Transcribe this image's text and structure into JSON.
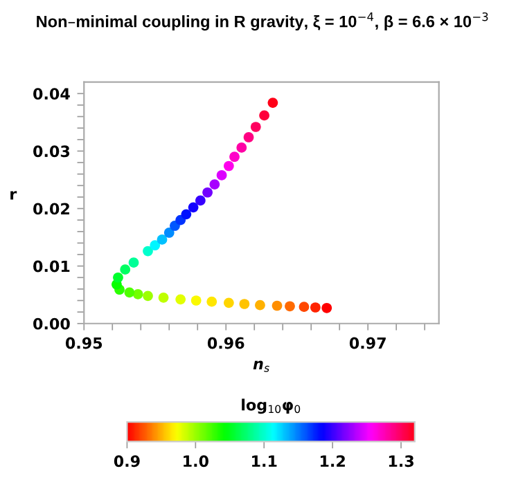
{
  "chart_data": {
    "type": "scatter",
    "title": "Non–minimal coupling in R gravity, ξ = 10$^{−4}$, β = 6.6 × 10$^{−3}$",
    "xlabel": "n$_{s}$",
    "ylabel": "r",
    "clabel": "log$_{10}$φ$_{0}$",
    "x": [
      0.9671,
      0.9663,
      0.9655,
      0.9645,
      0.9636,
      0.9624,
      0.9613,
      0.9602,
      0.959,
      0.9579,
      0.9568,
      0.9556,
      0.9545,
      0.9538,
      0.9532,
      0.9525,
      0.9523,
      0.9524,
      0.9529,
      0.9535,
      0.9545,
      0.955,
      0.9555,
      0.956,
      0.9564,
      0.9568,
      0.9572,
      0.9577,
      0.9582,
      0.9587,
      0.9592,
      0.9597,
      0.9602,
      0.9606,
      0.9611,
      0.9616,
      0.9621,
      0.9627,
      0.9633
    ],
    "values": [
      0.0027,
      0.0028,
      0.0029,
      0.003,
      0.0031,
      0.0032,
      0.0034,
      0.0036,
      0.0038,
      0.004,
      0.0042,
      0.0045,
      0.0048,
      0.0051,
      0.0054,
      0.0059,
      0.0068,
      0.008,
      0.0094,
      0.0106,
      0.0126,
      0.0136,
      0.0146,
      0.0158,
      0.017,
      0.018,
      0.019,
      0.0202,
      0.0214,
      0.0228,
      0.0242,
      0.0258,
      0.0274,
      0.029,
      0.0306,
      0.0324,
      0.0342,
      0.0362,
      0.0384
    ],
    "cvalues": [
      0.9,
      0.91,
      0.92,
      0.93,
      0.94,
      0.95,
      0.955,
      0.96,
      0.965,
      0.972,
      0.98,
      0.99,
      1.0,
      1.01,
      1.02,
      1.03,
      1.04,
      1.055,
      1.07,
      1.085,
      1.1,
      1.115,
      1.13,
      1.145,
      1.16,
      1.17,
      1.18,
      1.19,
      1.2,
      1.215,
      1.23,
      1.245,
      1.26,
      1.27,
      1.28,
      1.29,
      1.3,
      1.31,
      1.32
    ],
    "marker": "circle",
    "grid": false,
    "xlim": [
      0.95,
      0.975
    ],
    "xticks": [
      0.95,
      {
        "value": 0.952,
        "label": null
      },
      {
        "value": 0.954,
        "label": null
      },
      {
        "value": 0.956,
        "label": null
      },
      {
        "value": 0.958,
        "label": null
      },
      0.96,
      {
        "value": 0.962,
        "label": null
      },
      {
        "value": 0.964,
        "label": null
      },
      {
        "value": 0.966,
        "label": null
      },
      {
        "value": 0.968,
        "label": null
      },
      0.97,
      {
        "value": 0.972,
        "label": null
      },
      {
        "value": 0.974,
        "label": null
      }
    ],
    "ylim": [
      0.0,
      0.042
    ],
    "yticks": [
      {
        "value": 0.0,
        "label": "0.00"
      },
      {
        "value": 0.002,
        "label": null
      },
      {
        "value": 0.004,
        "label": null
      },
      {
        "value": 0.006,
        "label": null
      },
      {
        "value": 0.008,
        "label": null
      },
      {
        "value": 0.01,
        "label": "0.01"
      },
      {
        "value": 0.012,
        "label": null
      },
      {
        "value": 0.014,
        "label": null
      },
      {
        "value": 0.016,
        "label": null
      },
      {
        "value": 0.018,
        "label": null
      },
      {
        "value": 0.02,
        "label": "0.02"
      },
      {
        "value": 0.022,
        "label": null
      },
      {
        "value": 0.024,
        "label": null
      },
      {
        "value": 0.026,
        "label": null
      },
      {
        "value": 0.028,
        "label": null
      },
      {
        "value": 0.03,
        "label": "0.03"
      },
      {
        "value": 0.032,
        "label": null
      },
      {
        "value": 0.034,
        "label": null
      },
      {
        "value": 0.036,
        "label": null
      },
      {
        "value": 0.038,
        "label": null
      },
      {
        "value": 0.04,
        "label": "0.04"
      }
    ],
    "clim": [
      0.9,
      1.32
    ],
    "cticks": [
      0.9,
      {
        "value": 1.0,
        "label": "1.0"
      },
      1.1,
      1.2,
      1.3
    ]
  }
}
